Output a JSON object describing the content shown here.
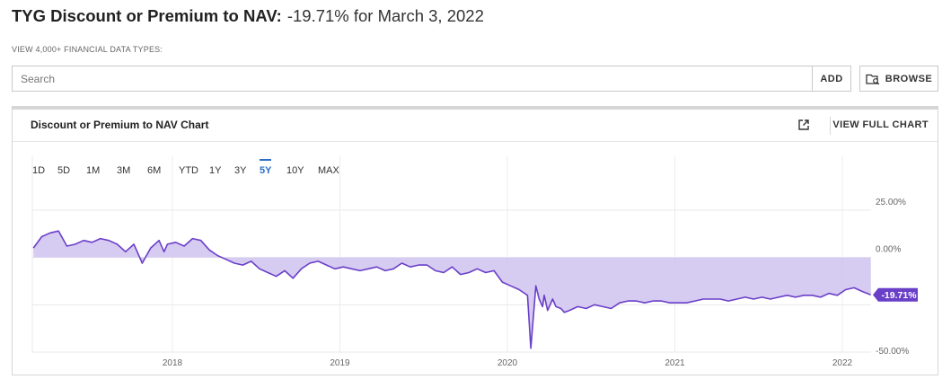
{
  "header": {
    "title": "TYG Discount or Premium to NAV:",
    "value_text": "-19.71% for March 3, 2022"
  },
  "subheader": "VIEW 4,000+ FINANCIAL DATA TYPES:",
  "search": {
    "placeholder": "Search",
    "add_label": "ADD",
    "browse_label": "BROWSE"
  },
  "panel": {
    "title": "Discount or Premium to NAV Chart",
    "view_full_label": "VIEW FULL CHART"
  },
  "range_buttons": [
    "1D",
    "5D",
    "1M",
    "3M",
    "6M",
    "YTD",
    "1Y",
    "3Y",
    "5Y",
    "10Y",
    "MAX"
  ],
  "active_range": "5Y",
  "colors": {
    "line": "#6a3fc8",
    "fill": "#d4c8f0",
    "accent": "#2a6ec6",
    "badge": "#6a3fc8"
  },
  "chart_data": {
    "type": "area",
    "y_ticks": [
      "25.00%",
      "0.00%",
      "-50.00%"
    ],
    "x_ticks": [
      "2018",
      "2019",
      "2020",
      "2021",
      "2022"
    ],
    "ylim": [
      -50,
      25
    ],
    "last_value_label": "-19.71%",
    "series": [
      {
        "x": [
          2017.17,
          2017.22,
          2017.27,
          2017.32,
          2017.37,
          2017.42,
          2017.47,
          2017.52,
          2017.57,
          2017.62,
          2017.67,
          2017.72,
          2017.77,
          2017.82,
          2017.87,
          2017.92,
          2017.95,
          2017.97,
          2018.02,
          2018.07,
          2018.12,
          2018.17,
          2018.22,
          2018.27,
          2018.32,
          2018.37,
          2018.42,
          2018.47,
          2018.52,
          2018.57,
          2018.62,
          2018.67,
          2018.72,
          2018.77,
          2018.82,
          2018.87,
          2018.92,
          2018.97,
          2019.02,
          2019.07,
          2019.12,
          2019.17,
          2019.22,
          2019.27,
          2019.32,
          2019.37,
          2019.42,
          2019.47,
          2019.52,
          2019.57,
          2019.62,
          2019.67,
          2019.72,
          2019.77,
          2019.82,
          2019.87,
          2019.92,
          2019.97,
          2020.02,
          2020.07,
          2020.12,
          2020.14,
          2020.17,
          2020.19,
          2020.21,
          2020.22,
          2020.24,
          2020.27,
          2020.29,
          2020.32,
          2020.34,
          2020.37,
          2020.42,
          2020.47,
          2020.52,
          2020.57,
          2020.62,
          2020.67,
          2020.72,
          2020.77,
          2020.82,
          2020.87,
          2020.92,
          2020.97,
          2021.02,
          2021.07,
          2021.12,
          2021.17,
          2021.22,
          2021.27,
          2021.32,
          2021.37,
          2021.42,
          2021.47,
          2021.52,
          2021.57,
          2021.62,
          2021.67,
          2021.72,
          2021.77,
          2021.82,
          2021.87,
          2021.92,
          2021.97,
          2022.02,
          2022.07,
          2022.12,
          2022.17
        ],
        "values": [
          5,
          11,
          13,
          14,
          6,
          7,
          9,
          8,
          10,
          9,
          7,
          3,
          7,
          -3,
          5,
          9,
          3,
          7,
          8,
          6,
          10,
          9,
          4,
          1,
          -1,
          -3,
          -4,
          -2,
          -6,
          -8,
          -10,
          -7,
          -11,
          -6,
          -3,
          -2,
          -4,
          -6,
          -5,
          -6,
          -7,
          -6,
          -5,
          -7,
          -6,
          -3,
          -5,
          -4,
          -4,
          -7,
          -8,
          -5,
          -9,
          -8,
          -6,
          -8,
          -7,
          -13,
          -15,
          -17,
          -20,
          -48,
          -15,
          -22,
          -26,
          -20,
          -28,
          -22,
          -26,
          -27,
          -29,
          -28,
          -26,
          -27,
          -25,
          -26,
          -27,
          -24,
          -23,
          -23,
          -24,
          -23,
          -23,
          -24,
          -24,
          -24,
          -23,
          -22,
          -22,
          -22,
          -23,
          -22,
          -21,
          -22,
          -21,
          -22,
          -21,
          -20,
          -21,
          -20,
          -20,
          -21,
          -19,
          -20,
          -17,
          -16,
          -18,
          -19.71
        ]
      }
    ]
  }
}
